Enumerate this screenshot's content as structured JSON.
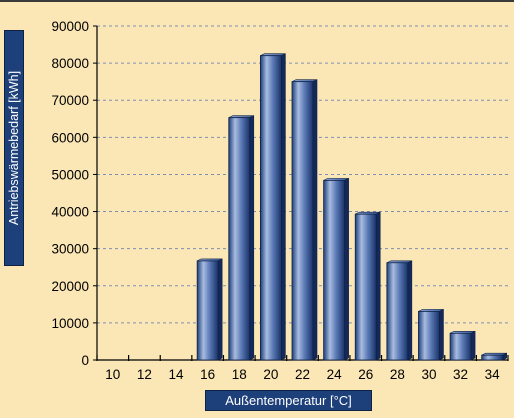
{
  "chart_data": {
    "type": "bar",
    "title": "",
    "xlabel": "Außentemperatur [°C]",
    "ylabel": "Antriebswärmebedarf [kWh]",
    "categories": [
      "10",
      "12",
      "14",
      "16",
      "18",
      "20",
      "22",
      "24",
      "26",
      "28",
      "30",
      "32",
      "34"
    ],
    "values": [
      0,
      0,
      0,
      26700,
      65300,
      82000,
      75000,
      48400,
      39300,
      26200,
      13100,
      7200,
      1300
    ],
    "ylim": [
      0,
      90000
    ],
    "yticks": [
      "0",
      "10000",
      "20000",
      "30000",
      "40000",
      "50000",
      "60000",
      "70000",
      "80000",
      "90000"
    ],
    "grid": true,
    "colors": {
      "background": "#fbe7b6",
      "bar_dark": "#1d3f7a",
      "bar_light": "#a9bce0",
      "grid": "#7f8fb0",
      "label_box": "#1d3f7a"
    }
  }
}
